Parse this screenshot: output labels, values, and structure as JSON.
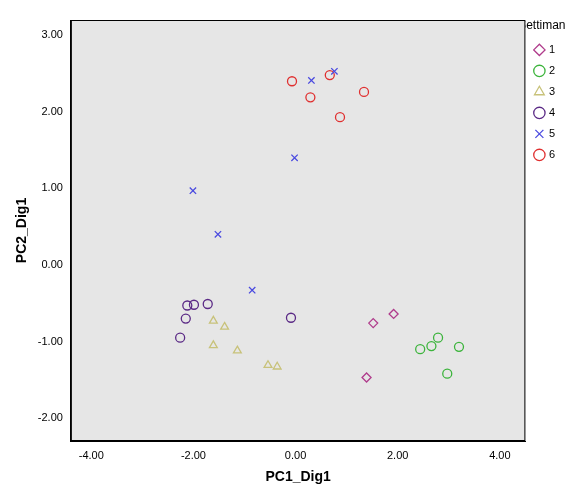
{
  "chart_data": {
    "type": "scatter",
    "x_label": "PC1_Dig1",
    "y_label": "PC2_Dig1",
    "legend_title": "Settimana",
    "legend": "right",
    "grid": false,
    "xlim": [
      -4.4,
      4.5
    ],
    "ylim": [
      -2.3,
      3.2
    ],
    "xticks": [
      {
        "value": -4,
        "label": "-4.00"
      },
      {
        "value": -2,
        "label": "-2.00"
      },
      {
        "value": 0,
        "label": "0.00"
      },
      {
        "value": 2,
        "label": "2.00"
      },
      {
        "value": 4,
        "label": "4.00"
      }
    ],
    "yticks": [
      {
        "value": -2,
        "label": "-2.00"
      },
      {
        "value": -1,
        "label": "-1.00"
      },
      {
        "value": 0,
        "label": "0.00"
      },
      {
        "value": 1,
        "label": "1.00"
      },
      {
        "value": 2,
        "label": "2.00"
      },
      {
        "value": 3,
        "label": "3.00"
      }
    ],
    "series": [
      {
        "name": "1",
        "color": "#b03c8c",
        "marker": "diamond",
        "x": [
          1.92,
          1.52,
          1.39
        ],
        "values": [
          -0.64,
          -0.76,
          -1.47
        ]
      },
      {
        "name": "2",
        "color": "#3cb43c",
        "marker": "circle",
        "x": [
          2.44,
          2.66,
          2.79,
          3.2,
          2.97
        ],
        "values": [
          -1.1,
          -1.06,
          -0.95,
          -1.07,
          -1.42
        ]
      },
      {
        "name": "3",
        "color": "#c8c27a",
        "marker": "triangle",
        "x": [
          -1.61,
          -1.39,
          -1.61,
          -1.14,
          -0.54,
          -0.36
        ],
        "values": [
          -0.73,
          -0.81,
          -1.05,
          -1.12,
          -1.31,
          -1.33
        ]
      },
      {
        "name": "4",
        "color": "#5b2a86",
        "marker": "circle",
        "x": [
          -2.12,
          -1.99,
          -1.72,
          -2.15,
          -2.26,
          -0.09
        ],
        "values": [
          -0.53,
          -0.52,
          -0.51,
          -0.7,
          -0.95,
          -0.69
        ]
      },
      {
        "name": "5",
        "color": "#4a4ae0",
        "marker": "x",
        "x": [
          0.76,
          0.31,
          -0.02,
          -2.01,
          -1.52,
          -0.85
        ],
        "values": [
          2.53,
          2.41,
          1.4,
          0.97,
          0.4,
          -0.33
        ]
      },
      {
        "name": "6",
        "color": "#e03030",
        "marker": "circle",
        "x": [
          -0.07,
          0.29,
          0.67,
          1.34,
          0.87
        ],
        "values": [
          2.4,
          2.19,
          2.48,
          2.26,
          1.93
        ]
      }
    ]
  }
}
